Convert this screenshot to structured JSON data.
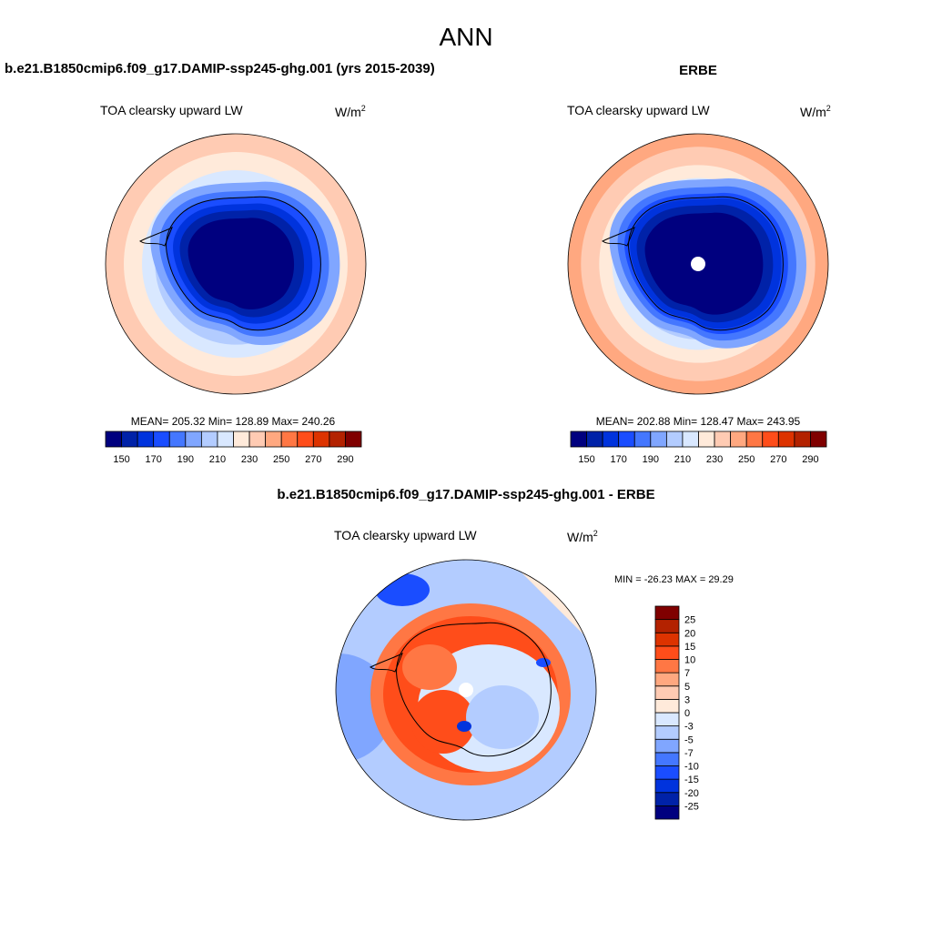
{
  "chart_data": [
    {
      "type": "heatmap",
      "projection": "south-polar-stereographic",
      "title": "b.e21.B1850cmip6.f09_g17.DAMIP-ssp245-ghg.001 (yrs 2015-2039)",
      "subtitle": "TOA clearsky upward LW",
      "units": "W/m",
      "units_sup": "2",
      "stats": "MEAN= 205.32  Min= 128.89  Max= 240.26",
      "colorbar": {
        "levels": [
          150,
          160,
          170,
          180,
          190,
          200,
          210,
          220,
          230,
          240,
          250,
          260,
          270,
          280,
          290
        ],
        "tick_labels": [
          "150",
          "170",
          "190",
          "210",
          "230",
          "250",
          "270",
          "290"
        ]
      }
    },
    {
      "type": "heatmap",
      "projection": "south-polar-stereographic",
      "title": "ERBE",
      "subtitle": "TOA clearsky upward LW",
      "units": "W/m",
      "units_sup": "2",
      "stats": "MEAN= 202.88  Min= 128.47  Max= 243.95",
      "colorbar": {
        "levels": [
          150,
          160,
          170,
          180,
          190,
          200,
          210,
          220,
          230,
          240,
          250,
          260,
          270,
          280,
          290
        ],
        "tick_labels": [
          "150",
          "170",
          "190",
          "210",
          "230",
          "250",
          "270",
          "290"
        ]
      }
    },
    {
      "type": "heatmap",
      "projection": "south-polar-stereographic",
      "title": "b.e21.B1850cmip6.f09_g17.DAMIP-ssp245-ghg.001 - ERBE",
      "subtitle": "TOA clearsky upward LW",
      "units": "W/m",
      "units_sup": "2",
      "stats": "MIN = -26.23 MAX =  29.29",
      "colorbar": {
        "levels": [
          -25,
          -20,
          -15,
          -10,
          -7,
          -5,
          -3,
          0,
          3,
          5,
          7,
          10,
          15,
          20,
          25
        ],
        "tick_labels": [
          "-25",
          "-20",
          "-15",
          "-10",
          "-7",
          "-5",
          "-3",
          "0",
          "3",
          "5",
          "7",
          "10",
          "15",
          "20",
          "25"
        ]
      }
    }
  ],
  "page_title": "ANN",
  "colors": [
    "#00007f",
    "#0022a8",
    "#0033dd",
    "#1a4dff",
    "#4477ff",
    "#80a6ff",
    "#b3ccff",
    "#d9e8ff",
    "#ffeada",
    "#ffcbb3",
    "#ffa880",
    "#ff7744",
    "#ff4d1a",
    "#dd3300",
    "#b32200",
    "#800000"
  ]
}
